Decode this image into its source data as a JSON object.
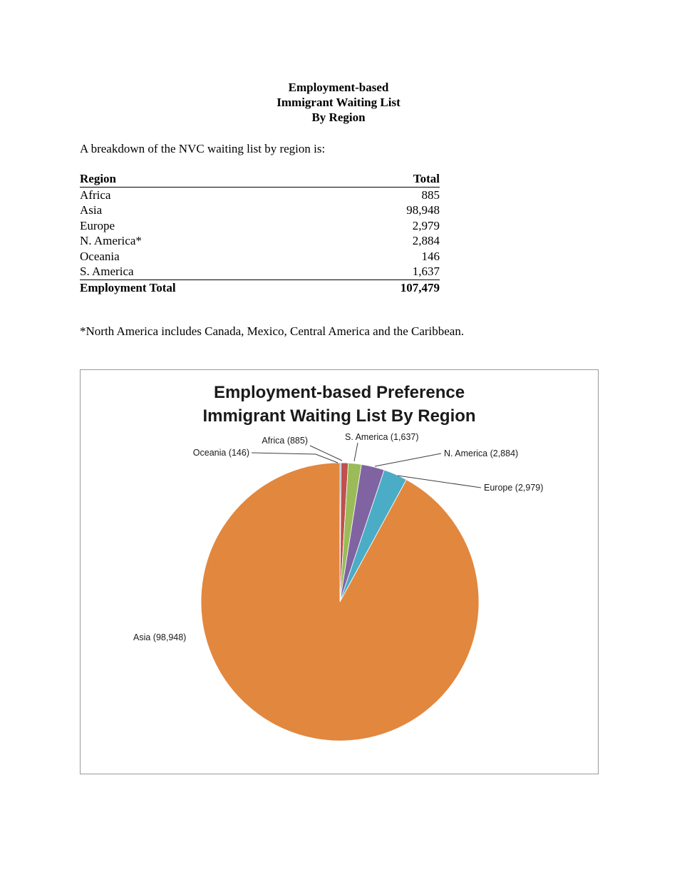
{
  "page": {
    "title_lines": [
      "Employment-based",
      "Immigrant Waiting List",
      "By Region"
    ],
    "intro": "A breakdown of the NVC waiting list by region is:",
    "footnote": "*North America includes Canada, Mexico, Central America and the Caribbean."
  },
  "table": {
    "headers": [
      "Region",
      "Total"
    ],
    "rows": [
      {
        "region": "Africa",
        "total": "885"
      },
      {
        "region": "Asia",
        "total": "98,948"
      },
      {
        "region": "Europe",
        "total": "2,979"
      },
      {
        "region": "N. America*",
        "total": "2,884"
      },
      {
        "region": "Oceania",
        "total": "146"
      },
      {
        "region": "S. America",
        "total": "1,637"
      }
    ],
    "total_row": {
      "label": "Employment Total",
      "value": "107,479"
    }
  },
  "chart_data": {
    "type": "pie",
    "title_lines": [
      "Employment-based Preference",
      "Immigrant Waiting List By Region"
    ],
    "total": 107479,
    "start_angle_deg": 0,
    "direction": "clockwise",
    "legend": "none",
    "labels_style": "outside-with-leader-lines",
    "slices": [
      {
        "name": "Oceania",
        "value": 146,
        "label": "Oceania (146)",
        "color": "#4F81BD"
      },
      {
        "name": "Africa",
        "value": 885,
        "label": "Africa (885)",
        "color": "#C0504D"
      },
      {
        "name": "S. America",
        "value": 1637,
        "label": "S. America (1,637)",
        "color": "#9BBB59"
      },
      {
        "name": "N. America",
        "value": 2884,
        "label": "N. America (2,884)",
        "color": "#8064A2"
      },
      {
        "name": "Europe",
        "value": 2979,
        "label": "Europe (2,979)",
        "color": "#4BACC6"
      },
      {
        "name": "Asia",
        "value": 98948,
        "label": "Asia (98,948)",
        "color": "#E2873E"
      }
    ]
  }
}
